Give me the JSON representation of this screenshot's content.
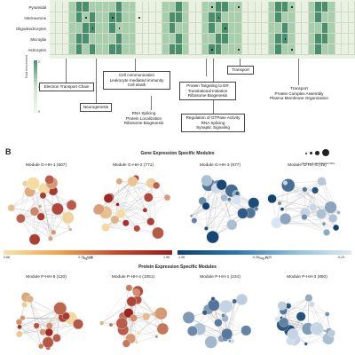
{
  "panel_a": {
    "rows": [
      "Pyramidal",
      "Interneurons",
      "Oligodendrocytes",
      "Microglia",
      "Astrocytes"
    ],
    "fold_enrichment_label": "Fold enrichment",
    "fold_ticks": [
      "2",
      "1",
      "0"
    ],
    "annotations": [
      {
        "id": "electron",
        "lines": [
          "Electron Transport Chain"
        ]
      },
      {
        "id": "neurogenesis",
        "lines": [
          "Neurogenesis"
        ]
      },
      {
        "id": "cellcomm",
        "lines": [
          "Cell communication",
          "Leukocyte mediated immunity",
          "Cell death"
        ]
      },
      {
        "id": "rnasplice1",
        "lines": [
          "RNA Splicing",
          "Protein Localization",
          "Ribosome Biogenesis"
        ]
      },
      {
        "id": "proteintarget",
        "lines": [
          "Protein Targeting to ER",
          "Translational Initiation",
          "Ribosome Biogenesis"
        ]
      },
      {
        "id": "transport1",
        "lines": [
          "Transport"
        ]
      },
      {
        "id": "transport2",
        "lines": [
          "Transport",
          "Protein Complex Assembly",
          "Plasma Membrane Organization"
        ]
      },
      {
        "id": "gtpase",
        "lines": [
          "Regulation of GTPase Activity",
          "RNA Splicing",
          "Synaptic Signaling"
        ]
      }
    ]
  },
  "panel_b": {
    "letter": "B",
    "gene_section_title": "Gene Expression Specific Modules",
    "protein_section_title": "Protein Expression Specific Modules",
    "degree_legend": "Degree of network centrality",
    "gene_modules": [
      {
        "title": "Module G-HH-1 (607)",
        "min": "0.66",
        "max": "2.73",
        "palette": "warm"
      },
      {
        "title": "Module G-HH-2 (771)",
        "min": "0.38",
        "max": "1.96",
        "palette": "warm"
      },
      {
        "title": "Module G-HH-3 (677)",
        "min": "-1.06",
        "max": "-0.35",
        "palette": "cool"
      },
      {
        "title": "Module G-HH-5 (49)",
        "min": "-0.70",
        "max": "-0.23",
        "palette": "cool"
      }
    ],
    "protein_modules": [
      {
        "title": "Module P-HH-5 (120)",
        "palette": "warm"
      },
      {
        "title": "Module P-HH-4 (1051)",
        "palette": "warm"
      },
      {
        "title": "Module P-HH-1 (234)",
        "palette": "cool"
      },
      {
        "title": "Module P-HH-3 (850)",
        "palette": "cool"
      }
    ],
    "scale_label": "log₂FC"
  },
  "colors": {
    "heat_light": "#e9f1e2",
    "heat_mid": "#a7cfae",
    "heat_dark": "#4a8f6d",
    "warm_low": "#f7e3a8",
    "warm_high": "#9a1a1a",
    "cool_low": "#dfeaf4",
    "cool_high": "#0f3f6e"
  }
}
